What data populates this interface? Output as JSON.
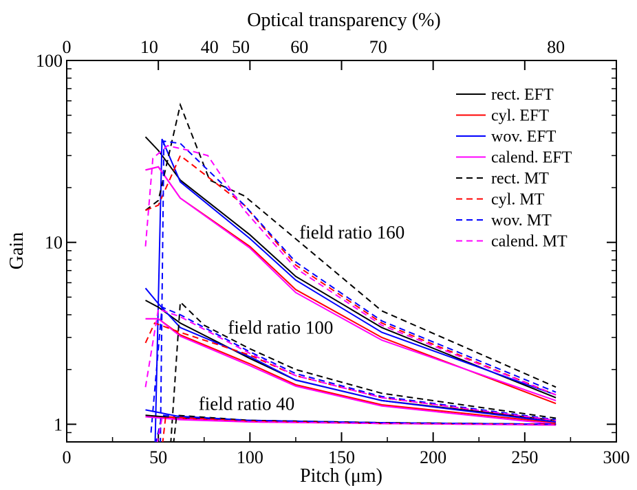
{
  "chart_data": {
    "type": "line",
    "xlabel": "Pitch (μm)",
    "ylabel": "Gain",
    "top_axis_label": "Optical transparency (%)",
    "xlim": [
      0,
      300
    ],
    "ylim": [
      0.8,
      100
    ],
    "yscale": "log",
    "grid": false,
    "legend_position": "top-right",
    "x_ticks": [
      "0",
      "50",
      "100",
      "150",
      "200",
      "250",
      "300"
    ],
    "y_ticks": [
      {
        "value": 1,
        "label": "1"
      },
      {
        "value": 10,
        "label": "10"
      },
      {
        "value": 100,
        "label": "100"
      }
    ],
    "top_ticks": [
      {
        "pitch": 0,
        "label": "0"
      },
      {
        "pitch": 45,
        "label": "10"
      },
      {
        "pitch": 78,
        "label": "40"
      },
      {
        "pitch": 95,
        "label": "50"
      },
      {
        "pitch": 127,
        "label": "60"
      },
      {
        "pitch": 170,
        "label": "70"
      },
      {
        "pitch": 267,
        "label": "80"
      }
    ],
    "annotations": [
      {
        "text": "field ratio 160",
        "x": 127,
        "y": 10.5
      },
      {
        "text": "field ratio 100",
        "x": 88,
        "y": 3.15
      },
      {
        "text": "field ratio 40",
        "x": 72,
        "y": 1.2
      }
    ],
    "legend": [
      {
        "label": "rect. EFT",
        "color": "#000000",
        "dash": "solid"
      },
      {
        "label": "cyl. EFT",
        "color": "#ff0000",
        "dash": "solid"
      },
      {
        "label": "wov. EFT",
        "color": "#0000ff",
        "dash": "solid"
      },
      {
        "label": "calend. EFT",
        "color": "#ff00ff",
        "dash": "solid"
      },
      {
        "label": "rect. MT",
        "color": "#000000",
        "dash": "dashed"
      },
      {
        "label": "cyl. MT",
        "color": "#ff0000",
        "dash": "dashed"
      },
      {
        "label": "wov. MT",
        "color": "#0000ff",
        "dash": "dashed"
      },
      {
        "label": "calend. MT",
        "color": "#ff00ff",
        "dash": "dashed"
      }
    ],
    "series": [
      {
        "model": "rect. EFT",
        "field_ratio": 160,
        "color": "#000000",
        "dash": "solid",
        "x": [
          43,
          50,
          62,
          100,
          125,
          172,
          267
        ],
        "y": [
          38,
          32,
          22,
          11,
          6.5,
          3.4,
          1.4
        ]
      },
      {
        "model": "cyl. EFT",
        "field_ratio": 160,
        "color": "#ff0000",
        "dash": "solid",
        "x": [
          43,
          50,
          62,
          100,
          125,
          172,
          267
        ],
        "y": [
          25,
          26,
          17.5,
          9.5,
          5.5,
          3.0,
          1.3
        ]
      },
      {
        "model": "wov. EFT",
        "field_ratio": 160,
        "color": "#0000ff",
        "dash": "solid",
        "x": [
          48,
          52,
          62,
          100,
          125,
          172,
          267
        ],
        "y": [
          0.6,
          37,
          21.5,
          10.5,
          6.2,
          3.2,
          1.45
        ]
      },
      {
        "model": "calend. EFT",
        "field_ratio": 160,
        "color": "#ff00ff",
        "dash": "solid",
        "x": [
          43,
          50,
          62,
          100,
          125,
          172,
          267
        ],
        "y": [
          25,
          26,
          17.5,
          9.3,
          5.3,
          2.9,
          1.35
        ]
      },
      {
        "model": "rect. MT",
        "field_ratio": 160,
        "color": "#000000",
        "dash": "dashed",
        "x": [
          43,
          50,
          62,
          78,
          97,
          172,
          267
        ],
        "y": [
          15,
          17,
          57,
          22,
          18,
          4.2,
          1.6
        ]
      },
      {
        "model": "cyl. MT",
        "field_ratio": 160,
        "color": "#ff0000",
        "dash": "dashed",
        "x": [
          43,
          50,
          62,
          97,
          125,
          172,
          267
        ],
        "y": [
          15,
          16,
          30,
          16,
          7.5,
          3.6,
          1.45
        ]
      },
      {
        "model": "wov. MT",
        "field_ratio": 160,
        "color": "#0000ff",
        "dash": "dashed",
        "x": [
          51,
          53,
          62,
          97,
          125,
          172,
          267
        ],
        "y": [
          0.6,
          36,
          35,
          16,
          7.8,
          3.7,
          1.5
        ]
      },
      {
        "model": "calend. MT",
        "field_ratio": 160,
        "color": "#ff00ff",
        "dash": "dashed",
        "x": [
          43,
          47,
          55,
          67,
          77,
          97,
          125,
          172,
          267
        ],
        "y": [
          9.5,
          29,
          34,
          32,
          30,
          15,
          7.2,
          3.5,
          1.45
        ]
      },
      {
        "model": "rect. EFT",
        "field_ratio": 100,
        "color": "#000000",
        "dash": "solid",
        "x": [
          43,
          50,
          62,
          100,
          125,
          172,
          267
        ],
        "y": [
          4.8,
          4.4,
          3.6,
          2.3,
          1.75,
          1.35,
          1.05
        ]
      },
      {
        "model": "cyl. EFT",
        "field_ratio": 100,
        "color": "#ff0000",
        "dash": "solid",
        "x": [
          43,
          50,
          62,
          100,
          125,
          172,
          267
        ],
        "y": [
          3.8,
          3.8,
          3.1,
          2.15,
          1.65,
          1.28,
          1.02
        ]
      },
      {
        "model": "wov. EFT",
        "field_ratio": 100,
        "color": "#0000ff",
        "dash": "solid",
        "x": [
          43,
          50,
          62,
          100,
          125,
          172,
          267
        ],
        "y": [
          5.6,
          4.6,
          3.4,
          2.35,
          1.75,
          1.35,
          1.03
        ]
      },
      {
        "model": "calend. EFT",
        "field_ratio": 100,
        "color": "#ff00ff",
        "dash": "solid",
        "x": [
          43,
          50,
          62,
          100,
          125,
          172,
          267
        ],
        "y": [
          3.8,
          3.8,
          3.05,
          2.1,
          1.62,
          1.26,
          1.0
        ]
      },
      {
        "model": "rect. MT",
        "field_ratio": 100,
        "color": "#000000",
        "dash": "dashed",
        "x": [
          56,
          62,
          75,
          100,
          125,
          172,
          267
        ],
        "y": [
          0.6,
          4.7,
          3.5,
          2.6,
          2.0,
          1.48,
          1.08
        ]
      },
      {
        "model": "cyl. MT",
        "field_ratio": 100,
        "color": "#ff0000",
        "dash": "dashed",
        "x": [
          43,
          48,
          62,
          100,
          125,
          172,
          267
        ],
        "y": [
          2.8,
          3.6,
          3.2,
          2.4,
          1.85,
          1.4,
          1.05
        ]
      },
      {
        "model": "wov. MT",
        "field_ratio": 100,
        "color": "#0000ff",
        "dash": "dashed",
        "x": [
          46,
          52,
          62,
          100,
          125,
          172,
          267
        ],
        "y": [
          0.9,
          4.4,
          4.0,
          2.5,
          1.9,
          1.42,
          1.06
        ]
      },
      {
        "model": "calend. MT",
        "field_ratio": 100,
        "color": "#ff00ff",
        "dash": "dashed",
        "x": [
          43,
          50,
          62,
          100,
          125,
          172,
          267
        ],
        "y": [
          1.6,
          4.3,
          3.9,
          2.45,
          1.85,
          1.4,
          1.05
        ]
      },
      {
        "model": "rect. EFT",
        "field_ratio": 40,
        "color": "#000000",
        "dash": "solid",
        "x": [
          43,
          62,
          100,
          172,
          267
        ],
        "y": [
          1.12,
          1.08,
          1.05,
          1.02,
          1.0
        ]
      },
      {
        "model": "cyl. EFT",
        "field_ratio": 40,
        "color": "#ff0000",
        "dash": "solid",
        "x": [
          43,
          62,
          100,
          172,
          267
        ],
        "y": [
          1.1,
          1.07,
          1.04,
          1.01,
          1.0
        ]
      },
      {
        "model": "wov. EFT",
        "field_ratio": 40,
        "color": "#0000ff",
        "dash": "solid",
        "x": [
          43,
          62,
          100,
          172,
          267
        ],
        "y": [
          1.2,
          1.1,
          1.05,
          1.02,
          1.0
        ]
      },
      {
        "model": "calend. EFT",
        "field_ratio": 40,
        "color": "#ff00ff",
        "dash": "solid",
        "x": [
          43,
          62,
          100,
          172,
          267
        ],
        "y": [
          1.1,
          1.06,
          1.03,
          1.01,
          0.99
        ]
      },
      {
        "model": "rect. MT",
        "field_ratio": 40,
        "color": "#000000",
        "dash": "dashed",
        "x": [
          57,
          60,
          100,
          172,
          267
        ],
        "y": [
          0.6,
          1.12,
          1.05,
          1.02,
          1.0
        ]
      },
      {
        "model": "cyl. MT",
        "field_ratio": 40,
        "color": "#ff0000",
        "dash": "dashed",
        "x": [
          51,
          54,
          100,
          172,
          267
        ],
        "y": [
          0.6,
          1.1,
          1.04,
          1.01,
          1.0
        ]
      },
      {
        "model": "wov. MT",
        "field_ratio": 40,
        "color": "#0000ff",
        "dash": "dashed",
        "x": [
          46,
          52,
          100,
          172,
          267
        ],
        "y": [
          0.6,
          1.12,
          1.05,
          1.02,
          1.0
        ]
      },
      {
        "model": "calend. MT",
        "field_ratio": 40,
        "color": "#ff00ff",
        "dash": "dashed",
        "x": [
          47,
          52,
          100,
          172,
          267
        ],
        "y": [
          0.6,
          1.08,
          1.03,
          1.01,
          0.99
        ]
      }
    ]
  }
}
